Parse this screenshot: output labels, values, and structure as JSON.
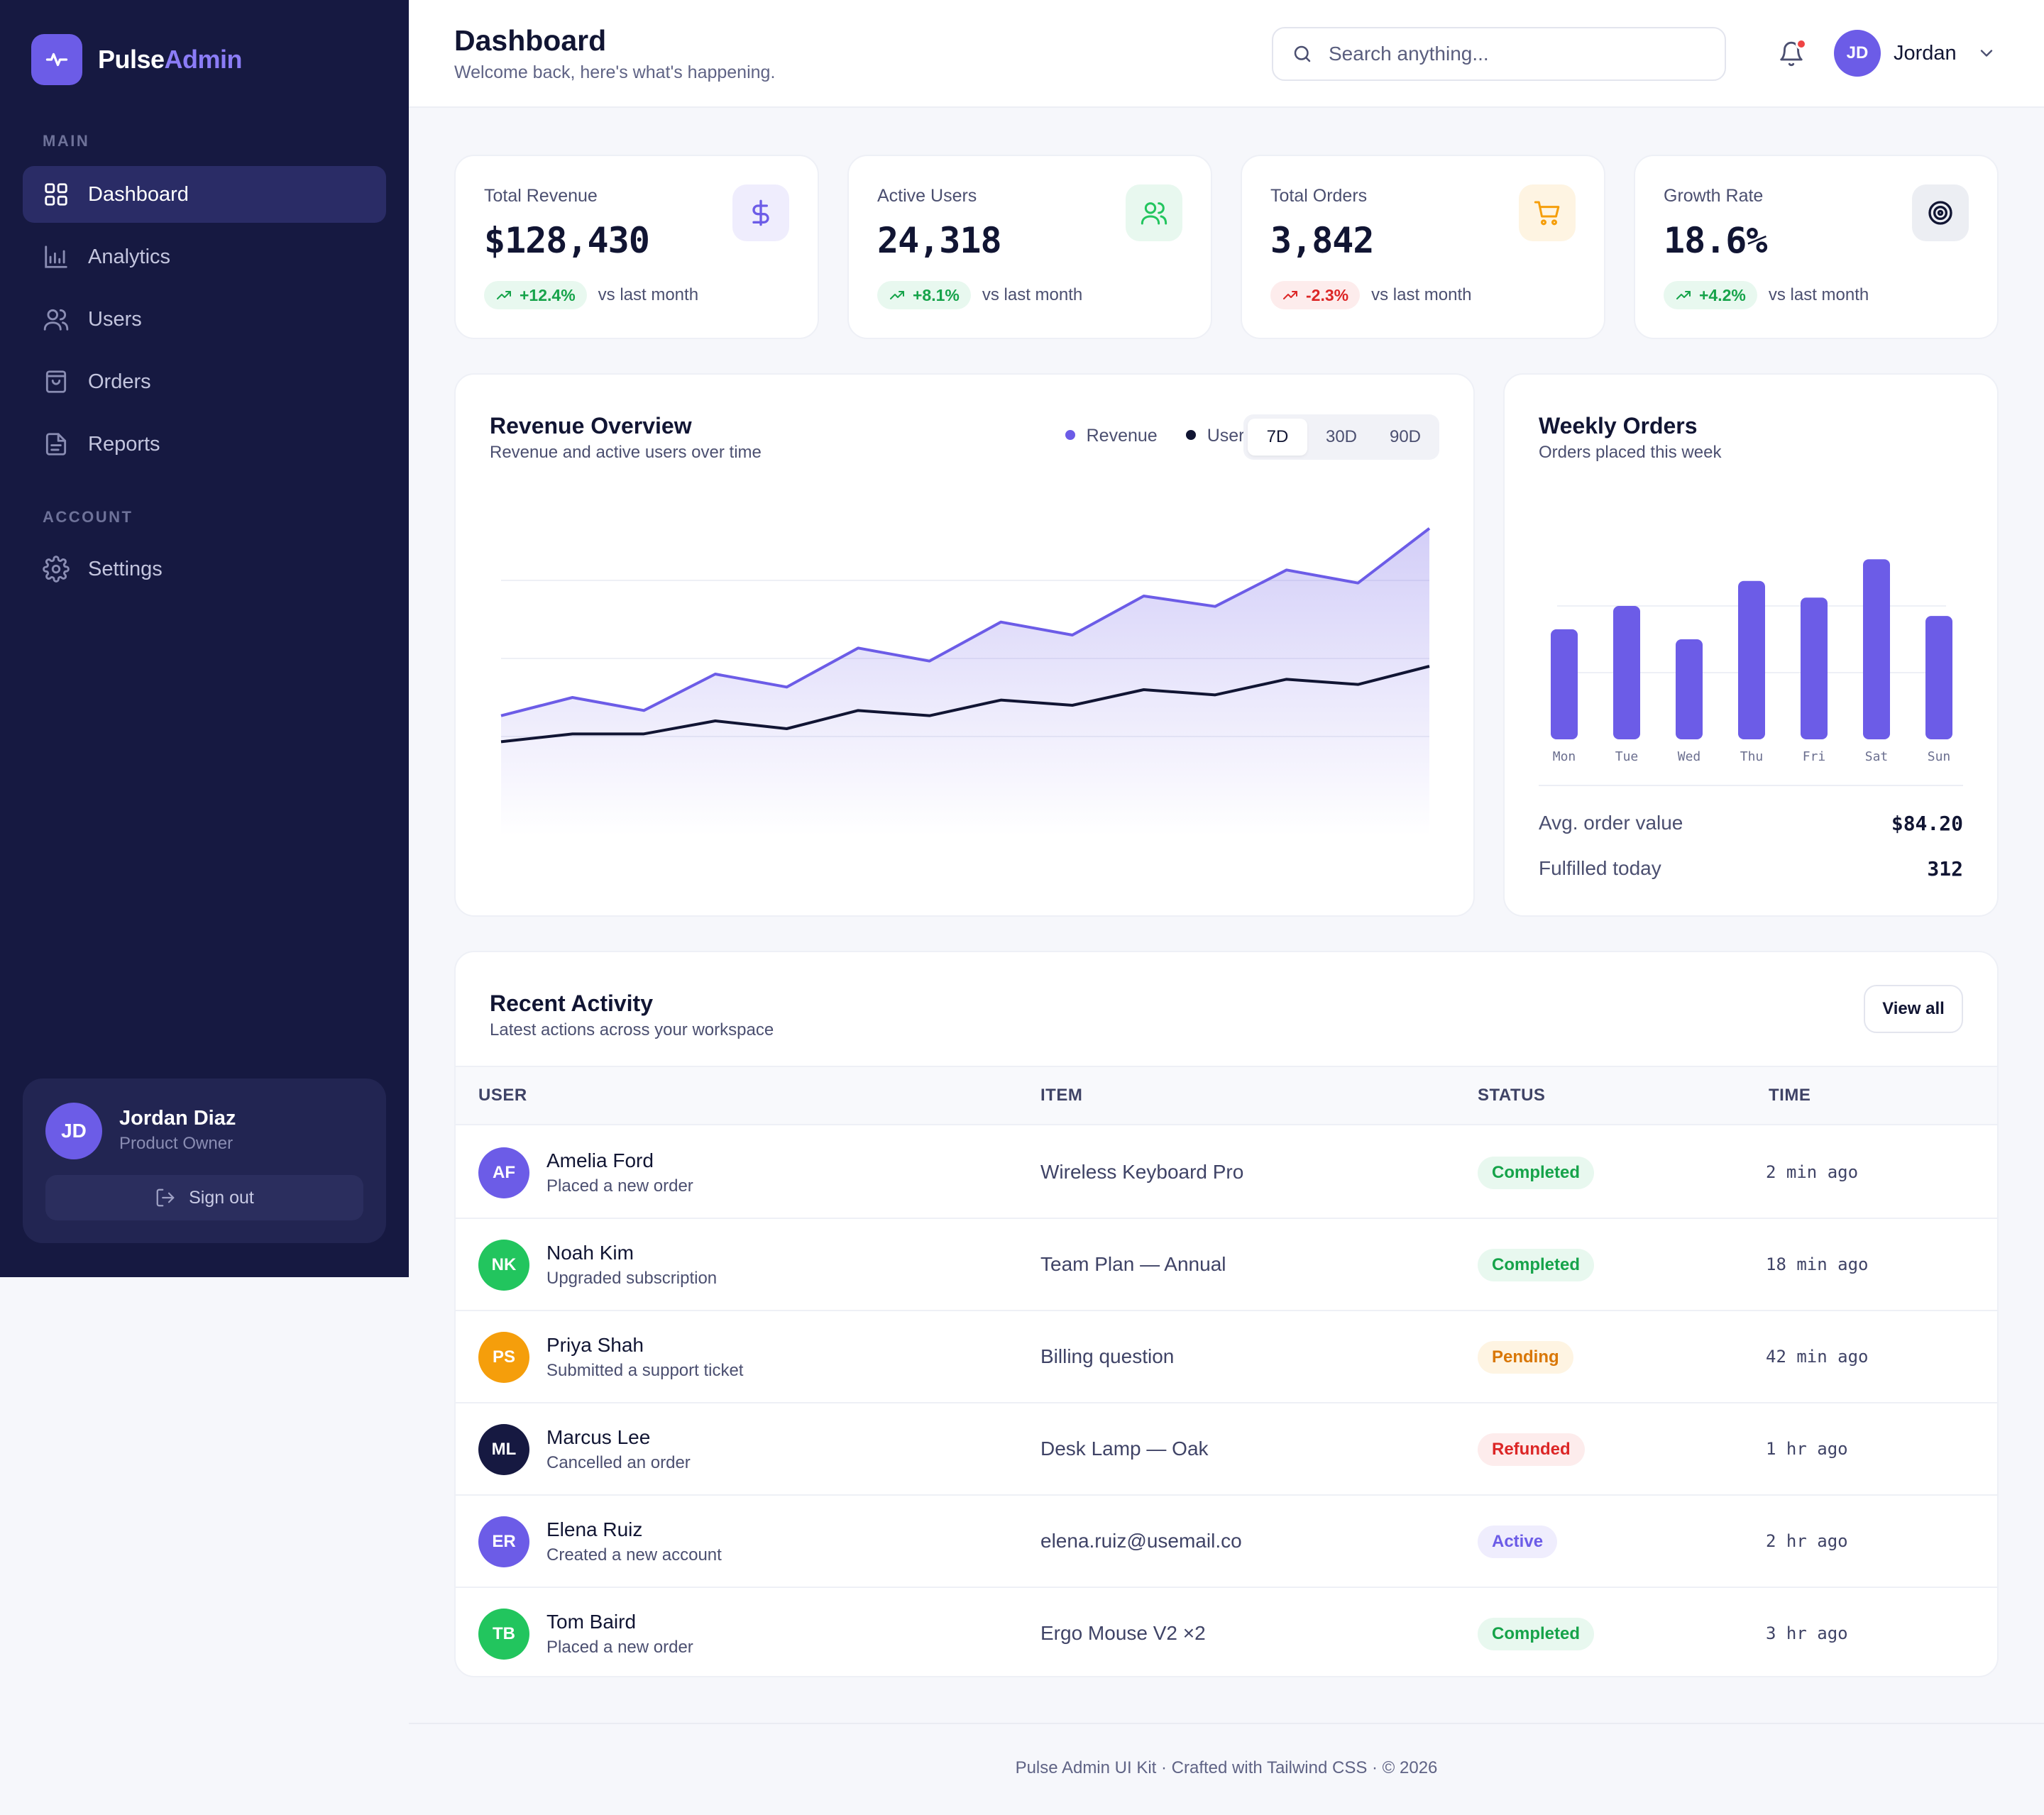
{
  "brand": {
    "name_a": "Pulse",
    "name_b": "Admin"
  },
  "sidebar": {
    "section_main": "MAIN",
    "section_account": "ACCOUNT",
    "items": [
      {
        "label": "Dashboard",
        "icon": "grid-icon",
        "active": true
      },
      {
        "label": "Analytics",
        "icon": "bar-chart-icon"
      },
      {
        "label": "Users",
        "icon": "users-icon"
      },
      {
        "label": "Orders",
        "icon": "shopping-bag-icon"
      },
      {
        "label": "Reports",
        "icon": "document-icon"
      }
    ],
    "settings": {
      "label": "Settings",
      "icon": "gear-icon"
    },
    "profile": {
      "initials": "JD",
      "name": "Jordan Diaz",
      "role": "Product Owner",
      "signout": "Sign out"
    }
  },
  "header": {
    "title": "Dashboard",
    "subtitle": "Welcome back, here's what's happening.",
    "search_placeholder": "Search anything...",
    "user_initials": "JD",
    "user_name": "Jordan"
  },
  "stats": [
    {
      "label": "Total Revenue",
      "value": "$128,430",
      "delta": "+12.4%",
      "direction": "up",
      "note": "vs last month",
      "icon": "dollar-icon",
      "color": "#6c5ce7",
      "bg": "#efedfd"
    },
    {
      "label": "Active Users",
      "value": "24,318",
      "delta": "+8.1%",
      "direction": "up",
      "note": "vs last month",
      "icon": "users-icon",
      "color": "#22c55e",
      "bg": "#e8f8ef"
    },
    {
      "label": "Total Orders",
      "value": "3,842",
      "delta": "-2.3%",
      "direction": "down",
      "note": "vs last month",
      "icon": "cart-icon",
      "color": "#f59e0b",
      "bg": "#fef4e2"
    },
    {
      "label": "Growth Rate",
      "value": "18.6%",
      "delta": "+4.2%",
      "direction": "up",
      "note": "vs last month",
      "icon": "target-icon",
      "color": "#111533",
      "bg": "#eceef3"
    }
  ],
  "revenue": {
    "title": "Revenue Overview",
    "subtitle": "Revenue and active users over time",
    "legend": [
      {
        "name": "Revenue",
        "color": "#6c5ce7"
      },
      {
        "name": "Users",
        "color": "#111533"
      }
    ],
    "ranges": [
      "7D",
      "30D",
      "90D"
    ],
    "active_range": "7D"
  },
  "weekly": {
    "title": "Weekly Orders",
    "subtitle": "Orders placed this week",
    "stats": [
      {
        "label": "Avg. order value",
        "value": "$84.20"
      },
      {
        "label": "Fulfilled today",
        "value": "312"
      }
    ]
  },
  "chart_data": [
    {
      "type": "area",
      "x": [
        1,
        2,
        3,
        4,
        5,
        6,
        7,
        8,
        9,
        10,
        11,
        12,
        13,
        14
      ],
      "series": [
        {
          "name": "Revenue",
          "values": [
            38,
            45,
            40,
            54,
            49,
            64,
            59,
            74,
            69,
            84,
            80,
            94,
            89,
            110
          ]
        },
        {
          "name": "Users",
          "values": [
            28,
            31,
            31,
            36,
            33,
            40,
            38,
            44,
            42,
            48,
            46,
            52,
            50,
            57
          ]
        }
      ],
      "ylim": [
        0,
        120
      ],
      "grid": true
    },
    {
      "type": "bar",
      "categories": [
        "Mon",
        "Tue",
        "Wed",
        "Thu",
        "Fri",
        "Sat",
        "Sun"
      ],
      "values": [
        66,
        80,
        60,
        95,
        85,
        108,
        74
      ],
      "ylim": [
        0,
        120
      ],
      "grid": true,
      "color": "#6c5ce7"
    }
  ],
  "activity": {
    "title": "Recent Activity",
    "subtitle": "Latest actions across your workspace",
    "view_all": "View all",
    "columns": [
      "USER",
      "ITEM",
      "STATUS",
      "TIME"
    ],
    "rows": [
      {
        "initials": "AF",
        "color": "#6c5ce7",
        "name": "Amelia Ford",
        "action": "Placed a new order",
        "item": "Wireless Keyboard Pro",
        "status": "Completed",
        "status_color": "#16a34a",
        "status_bg": "#e8f8ef",
        "time": "2 min ago"
      },
      {
        "initials": "NK",
        "color": "#22c55e",
        "name": "Noah Kim",
        "action": "Upgraded subscription",
        "item": "Team Plan — Annual",
        "status": "Completed",
        "status_color": "#16a34a",
        "status_bg": "#e8f8ef",
        "time": "18 min ago"
      },
      {
        "initials": "PS",
        "color": "#f59e0b",
        "name": "Priya Shah",
        "action": "Submitted a support ticket",
        "item": "Billing question",
        "status": "Pending",
        "status_color": "#d97706",
        "status_bg": "#fef4e2",
        "time": "42 min ago"
      },
      {
        "initials": "ML",
        "color": "#161941",
        "name": "Marcus Lee",
        "action": "Cancelled an order",
        "item": "Desk Lamp — Oak",
        "status": "Refunded",
        "status_color": "#dc2626",
        "status_bg": "#fdecec",
        "time": "1 hr ago"
      },
      {
        "initials": "ER",
        "color": "#6c5ce7",
        "name": "Elena Ruiz",
        "action": "Created a new account",
        "item": "elena.ruiz@usemail.co",
        "status": "Active",
        "status_color": "#6c5ce7",
        "status_bg": "#efedfd",
        "time": "2 hr ago"
      },
      {
        "initials": "TB",
        "color": "#22c55e",
        "name": "Tom Baird",
        "action": "Placed a new order",
        "item": "Ergo Mouse V2 ×2",
        "status": "Completed",
        "status_color": "#16a34a",
        "status_bg": "#e8f8ef",
        "time": "3 hr ago"
      }
    ]
  },
  "footer": {
    "text": "Pulse Admin UI Kit · Crafted with Tailwind CSS · © 2026"
  }
}
